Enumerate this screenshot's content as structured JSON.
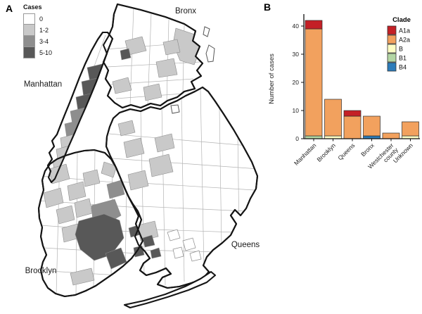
{
  "panelA": {
    "label": "A",
    "legend": {
      "title": "Cases",
      "items": [
        {
          "label": "0",
          "color": "#ffffff"
        },
        {
          "label": "1-2",
          "color": "#c9c9c9"
        },
        {
          "label": "3-4",
          "color": "#8e8e8e"
        },
        {
          "label": "5-10",
          "color": "#585858"
        }
      ]
    },
    "map_labels": {
      "manhattan": "Manhattan",
      "bronx": "Bronx",
      "brooklyn": "Brooklyn",
      "queens": "Queens"
    }
  },
  "panelB": {
    "label": "B"
  },
  "chart_data": {
    "type": "bar",
    "stacked": true,
    "title": "",
    "xlabel": "",
    "ylabel": "Number of cases",
    "ylim": [
      0,
      42
    ],
    "yticks": [
      0,
      10,
      20,
      30,
      40
    ],
    "categories": [
      "Manhattan",
      "Brooklyn",
      "Queens",
      "Bronx",
      "Westchester county",
      "Unknown"
    ],
    "category_label_lines": [
      [
        "Manhattan"
      ],
      [
        "Brooklyn"
      ],
      [
        "Queens"
      ],
      [
        "Bronx"
      ],
      [
        "Westchester",
        "county"
      ],
      [
        "Unknown"
      ]
    ],
    "totals": [
      42,
      14,
      10,
      8,
      2,
      6
    ],
    "series": [
      {
        "name": "A1a",
        "color": "#c42026",
        "values": [
          3,
          0,
          2,
          0,
          0,
          0
        ]
      },
      {
        "name": "A2a",
        "color": "#f2a15e",
        "values": [
          38,
          13,
          8,
          7,
          2,
          5
        ]
      },
      {
        "name": "B",
        "color": "#fdfdc4",
        "values": [
          0,
          1,
          0,
          0,
          0,
          1
        ]
      },
      {
        "name": "B1",
        "color": "#b3d6a4",
        "values": [
          1,
          0,
          0,
          0,
          0,
          0
        ]
      },
      {
        "name": "B4",
        "color": "#2c7cba",
        "values": [
          0,
          0,
          0,
          1,
          0,
          0
        ]
      }
    ],
    "stack_order_bottom_to_top": [
      "B4",
      "B1",
      "B",
      "A2a",
      "A1a"
    ],
    "legend": {
      "title": "Clade",
      "position": "top-right"
    },
    "axis_color": "#111111",
    "bar_outline_color": "#2b2b2b"
  }
}
